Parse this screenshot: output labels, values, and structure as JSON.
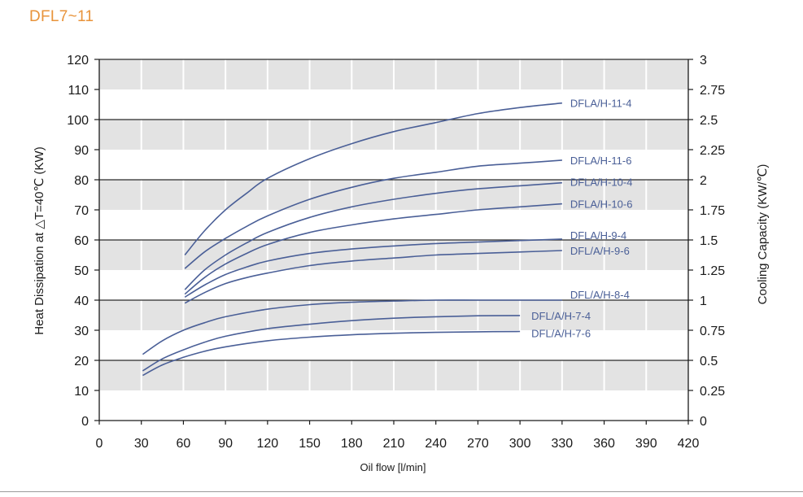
{
  "header": {
    "title": "DFL7~11"
  },
  "colors": {
    "series": "#4a5f97",
    "band": "#e3e3e3",
    "title": "#e8933a",
    "axis": "#1a1a1a"
  },
  "chart_data": {
    "type": "line",
    "title": "",
    "xlabel": "Oil flow [l/min]",
    "ylabel": "Heat Dissipation at  △T=40℃ (KW)",
    "ylabel_right": "Cooling Capacity (KW/℃)",
    "xlim": [
      0,
      420
    ],
    "ylim": [
      0,
      120
    ],
    "ylim_right": [
      0,
      3
    ],
    "x_ticks": [
      0,
      30,
      60,
      90,
      120,
      150,
      180,
      210,
      240,
      270,
      300,
      330,
      360,
      390,
      420
    ],
    "y_ticks": [
      0,
      10,
      20,
      30,
      40,
      50,
      60,
      70,
      80,
      90,
      100,
      110,
      120
    ],
    "y_ticks_right": [
      "0",
      "0.25",
      "0.5",
      "0.75",
      "1",
      "1.25",
      "1.5",
      "1.75",
      "2",
      "2.25",
      "2.5",
      "2.75",
      "3"
    ],
    "bands": "alternating gray bands between 10-unit gridlines",
    "series": [
      {
        "name": "DFLA/H-11-4",
        "x": [
          61,
          75,
          90,
          105,
          120,
          150,
          180,
          210,
          240,
          270,
          300,
          330
        ],
        "y": [
          55,
          63,
          70,
          75.5,
          80.5,
          87,
          92,
          96,
          99,
          102,
          104,
          105.5
        ]
      },
      {
        "name": "DFLA/H-11-6",
        "x": [
          61,
          75,
          90,
          105,
          120,
          150,
          180,
          210,
          240,
          270,
          300,
          330
        ],
        "y": [
          50.5,
          56,
          60.5,
          64.5,
          68,
          73.5,
          77.5,
          80.5,
          82.5,
          84.5,
          85.5,
          86.5
        ]
      },
      {
        "name": "DFLA/H-10-4",
        "x": [
          61,
          75,
          90,
          105,
          120,
          150,
          180,
          210,
          240,
          270,
          300,
          330
        ],
        "y": [
          43.5,
          50,
          55,
          59,
          62.5,
          67.5,
          71,
          73.5,
          75.5,
          77,
          78,
          79
        ]
      },
      {
        "name": "DFLA/H-10-6",
        "x": [
          61,
          75,
          90,
          105,
          120,
          150,
          180,
          210,
          240,
          270,
          300,
          330
        ],
        "y": [
          42,
          47.5,
          52,
          55.5,
          58.5,
          62.5,
          65,
          67,
          68.5,
          70,
          71,
          72
        ]
      },
      {
        "name": "DFLA/H-9-4",
        "x": [
          61,
          75,
          90,
          105,
          120,
          150,
          180,
          210,
          240,
          270,
          300,
          330
        ],
        "y": [
          41,
          45,
          48.5,
          51,
          53,
          55.5,
          57,
          58,
          58.8,
          59.3,
          59.8,
          60.3
        ]
      },
      {
        "name": "DFL/A/H-9-6",
        "x": [
          61,
          75,
          90,
          105,
          120,
          150,
          180,
          210,
          240,
          270,
          300,
          330
        ],
        "y": [
          39,
          42.5,
          45.5,
          47.5,
          49,
          51.5,
          53,
          54,
          55,
          55.5,
          56,
          56.5
        ]
      },
      {
        "name": "DFL/A/H-8-4",
        "x": [
          31,
          45,
          60,
          75,
          90,
          120,
          150,
          180,
          210,
          240,
          270,
          300,
          330
        ],
        "y": [
          22,
          26.5,
          30,
          32.5,
          34.5,
          37,
          38.5,
          39.3,
          39.7,
          40,
          40,
          40,
          40
        ]
      },
      {
        "name": "DFL/A/H-7-4",
        "x": [
          31,
          45,
          60,
          75,
          90,
          120,
          150,
          180,
          210,
          240,
          270,
          300
        ],
        "y": [
          16.5,
          20.5,
          23.5,
          26,
          28,
          30.5,
          32,
          33.2,
          34,
          34.5,
          34.8,
          34.9
        ]
      },
      {
        "name": "DFL/A/H-7-6",
        "x": [
          31,
          45,
          60,
          75,
          90,
          120,
          150,
          180,
          210,
          240,
          270,
          300
        ],
        "y": [
          15,
          18.5,
          21,
          23,
          24.5,
          26.5,
          27.7,
          28.5,
          29,
          29.3,
          29.5,
          29.6
        ]
      }
    ]
  }
}
